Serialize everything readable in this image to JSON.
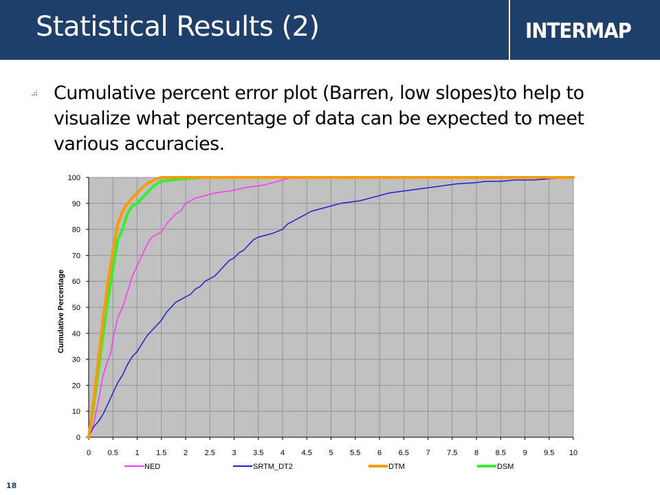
{
  "slide": {
    "title": "Statistical Results (2)",
    "logo": "INTERMAP",
    "bullet": "Cumulative percent error plot (Barren, low slopes)to help to visualize what percentage of data can be expected to meet various accuracies.",
    "page_number": "18",
    "colors": {
      "header": "#1f3f6b",
      "plot_bg": "#c0c0c0"
    }
  },
  "chart_data": {
    "type": "line",
    "ylabel": "Cumulative Percentage",
    "xlabel": "",
    "xlim": [
      0,
      10
    ],
    "ylim": [
      0,
      100
    ],
    "x_ticks": [
      "0",
      "0.5",
      "1",
      "1.5",
      "2",
      "2.5",
      "3",
      "3.5",
      "4",
      "4.5",
      "5",
      "5.5",
      "6",
      "6.5",
      "7",
      "7.5",
      "8",
      "8.5",
      "9",
      "9.5",
      "10"
    ],
    "y_ticks": [
      "0",
      "10",
      "20",
      "30",
      "40",
      "50",
      "60",
      "70",
      "80",
      "90",
      "100"
    ],
    "grid": true,
    "legend_position": "bottom",
    "series": [
      {
        "name": "NED",
        "color": "#ff33ff",
        "width": 1.5,
        "points": [
          [
            0,
            0
          ],
          [
            0.1,
            5
          ],
          [
            0.2,
            14
          ],
          [
            0.3,
            24
          ],
          [
            0.4,
            30
          ],
          [
            0.45,
            32
          ],
          [
            0.5,
            38
          ],
          [
            0.6,
            46
          ],
          [
            0.7,
            50
          ],
          [
            0.8,
            56
          ],
          [
            0.9,
            62
          ],
          [
            1.0,
            66
          ],
          [
            1.1,
            70
          ],
          [
            1.2,
            74
          ],
          [
            1.3,
            77
          ],
          [
            1.4,
            78
          ],
          [
            1.5,
            79
          ],
          [
            1.6,
            82
          ],
          [
            1.7,
            84
          ],
          [
            1.8,
            86
          ],
          [
            1.9,
            87
          ],
          [
            2.0,
            90
          ],
          [
            2.1,
            91
          ],
          [
            2.2,
            92
          ],
          [
            2.3,
            92.5
          ],
          [
            2.4,
            93
          ],
          [
            2.5,
            93.5
          ],
          [
            2.6,
            94
          ],
          [
            2.8,
            94.5
          ],
          [
            3.0,
            95
          ],
          [
            3.2,
            96
          ],
          [
            3.4,
            96.5
          ],
          [
            3.6,
            97
          ],
          [
            3.8,
            98
          ],
          [
            4.0,
            99
          ],
          [
            4.1,
            99.5
          ],
          [
            4.3,
            100
          ],
          [
            10,
            100
          ]
        ]
      },
      {
        "name": "SRTM_DT2",
        "color": "#1f1fcf",
        "width": 1.5,
        "points": [
          [
            0,
            0
          ],
          [
            0.1,
            4
          ],
          [
            0.2,
            6
          ],
          [
            0.3,
            9
          ],
          [
            0.4,
            13
          ],
          [
            0.5,
            17
          ],
          [
            0.6,
            21
          ],
          [
            0.7,
            24
          ],
          [
            0.8,
            28
          ],
          [
            0.9,
            31
          ],
          [
            1.0,
            33
          ],
          [
            1.1,
            36
          ],
          [
            1.2,
            39
          ],
          [
            1.3,
            41
          ],
          [
            1.4,
            43
          ],
          [
            1.5,
            45
          ],
          [
            1.6,
            48
          ],
          [
            1.7,
            50
          ],
          [
            1.8,
            52
          ],
          [
            1.9,
            53
          ],
          [
            2.0,
            54
          ],
          [
            2.1,
            55
          ],
          [
            2.2,
            57
          ],
          [
            2.3,
            58
          ],
          [
            2.4,
            60
          ],
          [
            2.5,
            61
          ],
          [
            2.6,
            62
          ],
          [
            2.7,
            64
          ],
          [
            2.8,
            66
          ],
          [
            2.9,
            68
          ],
          [
            3.0,
            69
          ],
          [
            3.1,
            71
          ],
          [
            3.2,
            72
          ],
          [
            3.3,
            74
          ],
          [
            3.4,
            76
          ],
          [
            3.5,
            77
          ],
          [
            3.6,
            77.5
          ],
          [
            3.8,
            78.5
          ],
          [
            4.0,
            80
          ],
          [
            4.1,
            82
          ],
          [
            4.2,
            83
          ],
          [
            4.3,
            84
          ],
          [
            4.4,
            85
          ],
          [
            4.5,
            86
          ],
          [
            4.6,
            87
          ],
          [
            4.8,
            88
          ],
          [
            5.0,
            89
          ],
          [
            5.2,
            90
          ],
          [
            5.4,
            90.5
          ],
          [
            5.6,
            91
          ],
          [
            5.8,
            92
          ],
          [
            6.0,
            93
          ],
          [
            6.2,
            94
          ],
          [
            6.4,
            94.5
          ],
          [
            6.6,
            95
          ],
          [
            6.8,
            95.5
          ],
          [
            7.0,
            96
          ],
          [
            7.2,
            96.5
          ],
          [
            7.4,
            97
          ],
          [
            7.6,
            97.5
          ],
          [
            8.0,
            98
          ],
          [
            8.2,
            98.5
          ],
          [
            8.5,
            98.5
          ],
          [
            8.8,
            99
          ],
          [
            9.2,
            99
          ],
          [
            9.5,
            99.5
          ],
          [
            10,
            100
          ]
        ]
      },
      {
        "name": "DTM",
        "color": "#ff9900",
        "width": 4,
        "points": [
          [
            0,
            0
          ],
          [
            0.1,
            14
          ],
          [
            0.2,
            30
          ],
          [
            0.3,
            46
          ],
          [
            0.4,
            60
          ],
          [
            0.5,
            72
          ],
          [
            0.6,
            82
          ],
          [
            0.7,
            87
          ],
          [
            0.8,
            90
          ],
          [
            0.9,
            92
          ],
          [
            1.0,
            94
          ],
          [
            1.1,
            96
          ],
          [
            1.2,
            97.5
          ],
          [
            1.3,
            98.5
          ],
          [
            1.4,
            99.5
          ],
          [
            1.5,
            100
          ],
          [
            10,
            100
          ]
        ]
      },
      {
        "name": "DSM",
        "color": "#33ee33",
        "width": 4,
        "points": [
          [
            0,
            0
          ],
          [
            0.1,
            12
          ],
          [
            0.2,
            26
          ],
          [
            0.3,
            40
          ],
          [
            0.4,
            53
          ],
          [
            0.5,
            65
          ],
          [
            0.6,
            76
          ],
          [
            0.7,
            80
          ],
          [
            0.8,
            86
          ],
          [
            0.9,
            89
          ],
          [
            1.0,
            90
          ],
          [
            1.1,
            92
          ],
          [
            1.2,
            94
          ],
          [
            1.3,
            96
          ],
          [
            1.4,
            97.5
          ],
          [
            1.5,
            98.5
          ],
          [
            1.7,
            99
          ],
          [
            2.0,
            99.5
          ],
          [
            2.4,
            100
          ],
          [
            10,
            100
          ]
        ]
      }
    ]
  }
}
